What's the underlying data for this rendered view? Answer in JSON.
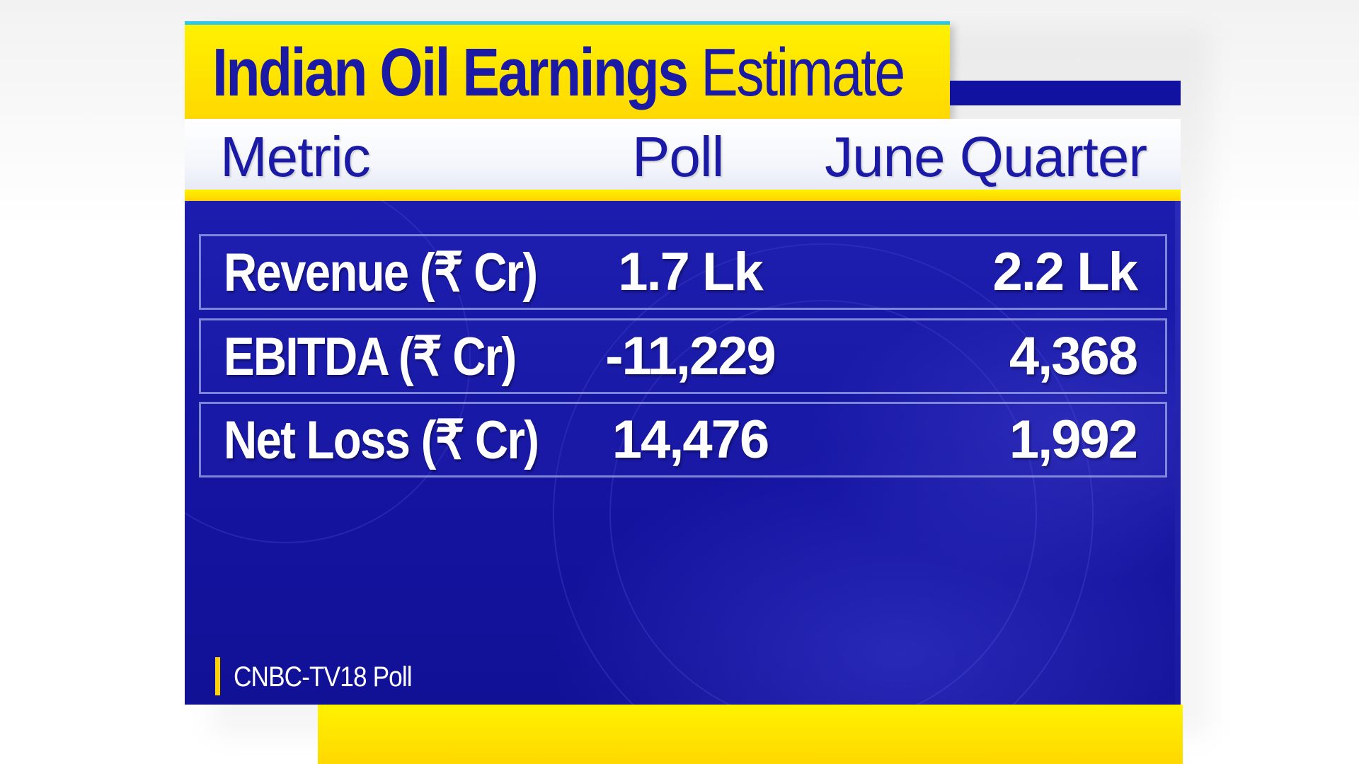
{
  "title": {
    "bold_part": "Indian Oil Earnings",
    "light_part": "Estimate"
  },
  "columns": {
    "metric": "Metric",
    "poll": "Poll",
    "june": "June Quarter"
  },
  "rows": [
    {
      "metric": "Revenue (₹ Cr)",
      "poll": "1.7 Lk",
      "june": "2.2 Lk"
    },
    {
      "metric": "EBITDA (₹ Cr)",
      "poll": "-11,229",
      "june": "4,368"
    },
    {
      "metric": "Net Loss (₹ Cr)",
      "poll": "14,476",
      "june": "1,992"
    }
  ],
  "source": "CNBC-TV18 Poll",
  "colors": {
    "brand_yellow": "#ffd800",
    "brand_navy": "#1414a2",
    "title_text": "#1a1aa6",
    "accent_cyan": "#2ec7e8"
  }
}
